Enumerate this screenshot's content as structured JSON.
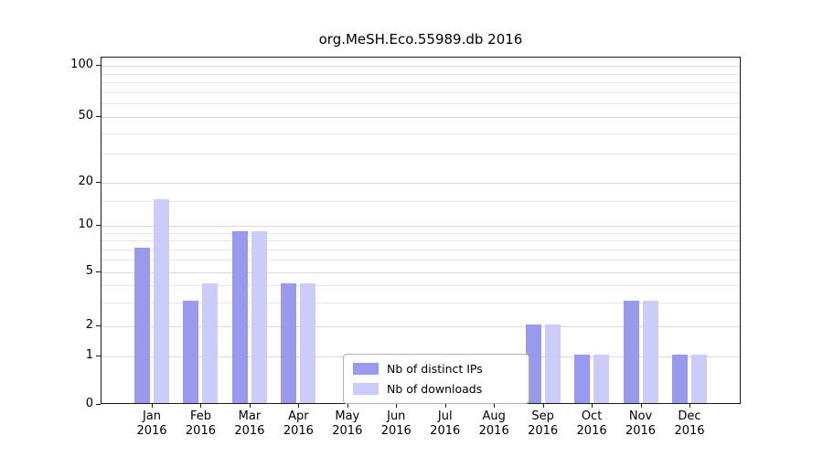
{
  "chart_data": {
    "type": "bar",
    "title": "org.MeSH.Eco.55989.db 2016",
    "categories": [
      "Jan",
      "Feb",
      "Mar",
      "Apr",
      "May",
      "Jun",
      "Jul",
      "Aug",
      "Sep",
      "Oct",
      "Nov",
      "Dec"
    ],
    "category_sublabel": "2016",
    "series": [
      {
        "name": "Nb of distinct IPs",
        "color": "#9999ee",
        "values": [
          7,
          3,
          9,
          4,
          0,
          0,
          0,
          0,
          2,
          1,
          3,
          1
        ]
      },
      {
        "name": "Nb of downloads",
        "color": "#ccccf8",
        "values": [
          15,
          4,
          9,
          4,
          0,
          0,
          0,
          0,
          2,
          1,
          3,
          1
        ]
      }
    ],
    "y_axis": {
      "scale": "log",
      "ticks": [
        0,
        1,
        2,
        5,
        10,
        20,
        50,
        100
      ]
    },
    "grid": true,
    "legend_position": "inside-bottom-center"
  }
}
